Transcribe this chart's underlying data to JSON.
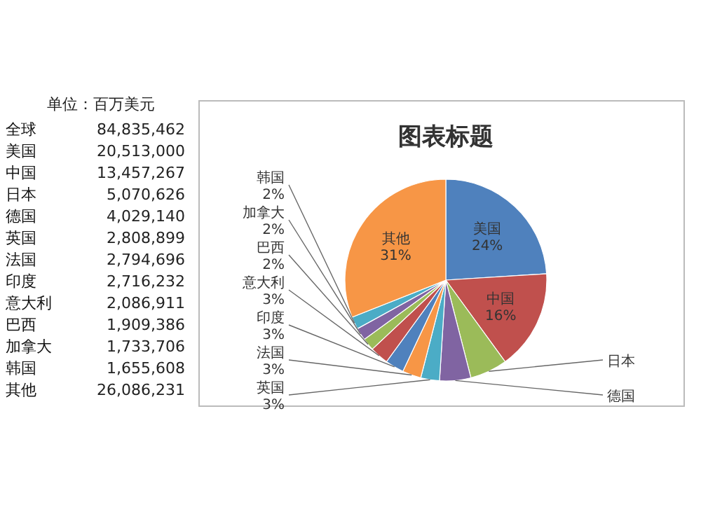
{
  "chart_data": {
    "type": "pie",
    "title": "图表标题",
    "categories": [
      "美国",
      "中国",
      "日本",
      "德国",
      "英国",
      "法国",
      "印度",
      "意大利",
      "巴西",
      "加拿大",
      "韩国",
      "其他"
    ],
    "values": [
      24,
      16,
      6,
      5,
      3,
      3,
      3,
      3,
      2,
      2,
      2,
      31
    ],
    "colors": [
      "#4f81bd",
      "#c0504d",
      "#9bbb59",
      "#8064a2",
      "#4bacc6",
      "#f79646",
      "#4f81bd",
      "#c0504d",
      "#9bbb59",
      "#8064a2",
      "#4bacc6",
      "#f79646"
    ],
    "value_labels": [
      "24%",
      "16%",
      null,
      null,
      "3%",
      "3%",
      "3%",
      "3%",
      "2%",
      "2%",
      "2%",
      "31%"
    ],
    "annotations": [
      "单位：百万美元",
      "全球",
      "84,835,462",
      "美国",
      "20,513,000",
      "中国",
      "13,457,267",
      "日本",
      "5,070,626",
      "德国",
      "4,029,140",
      "英国",
      "2,808,899",
      "法国",
      "2,794,696",
      "印度",
      "2,716,232",
      "意大利",
      "2,086,911",
      "巴西",
      "1,909,386",
      "加拿大",
      "1,733,706",
      "韩国",
      "1,655,608",
      "其他",
      "26,086,231"
    ]
  }
}
